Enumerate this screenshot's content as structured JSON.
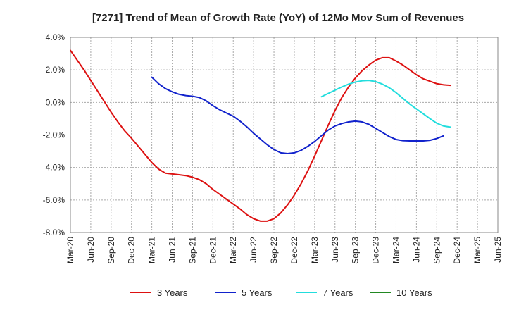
{
  "chart_data": {
    "type": "line",
    "title": "[7271]  Trend of Mean of Growth Rate (YoY) of 12Mo Mov Sum of Revenues",
    "xlabel": "",
    "ylabel": "",
    "ylim": [
      -8,
      4
    ],
    "yticks": [
      4,
      2,
      0,
      -2,
      -4,
      -6,
      -8
    ],
    "ytick_labels": [
      "4.0%",
      "2.0%",
      "0.0%",
      "-2.0%",
      "-4.0%",
      "-6.0%",
      "-8.0%"
    ],
    "x_range_months": [
      0,
      63
    ],
    "xtick_labels": [
      "Mar-20",
      "Jun-20",
      "Sep-20",
      "Dec-20",
      "Mar-21",
      "Jun-21",
      "Sep-21",
      "Dec-21",
      "Mar-22",
      "Jun-22",
      "Sep-22",
      "Dec-22",
      "Mar-23",
      "Jun-23",
      "Sep-23",
      "Dec-23",
      "Mar-24",
      "Jun-24",
      "Sep-24",
      "Dec-24",
      "Mar-25",
      "Jun-25"
    ],
    "grid": true,
    "legend_position": "bottom",
    "series": [
      {
        "name": "3 Years",
        "color": "#dd1111",
        "start_month": 0,
        "values": [
          3.2,
          2.6,
          2.0,
          1.35,
          0.7,
          0.05,
          -0.6,
          -1.2,
          -1.75,
          -2.2,
          -2.7,
          -3.2,
          -3.7,
          -4.1,
          -4.35,
          -4.4,
          -4.45,
          -4.5,
          -4.6,
          -4.75,
          -5.0,
          -5.35,
          -5.65,
          -5.95,
          -6.25,
          -6.55,
          -6.9,
          -7.15,
          -7.3,
          -7.3,
          -7.15,
          -6.8,
          -6.3,
          -5.7,
          -5.0,
          -4.2,
          -3.3,
          -2.35,
          -1.4,
          -0.5,
          0.3,
          0.95,
          1.5,
          1.95,
          2.3,
          2.6,
          2.75,
          2.75,
          2.55,
          2.3,
          2.0,
          1.7,
          1.45,
          1.3,
          1.15,
          1.08,
          1.05
        ]
      },
      {
        "name": "5 Years",
        "color": "#1122cc",
        "start_month": 12,
        "values": [
          1.55,
          1.15,
          0.85,
          0.65,
          0.5,
          0.42,
          0.38,
          0.3,
          0.1,
          -0.2,
          -0.45,
          -0.65,
          -0.85,
          -1.15,
          -1.5,
          -1.9,
          -2.25,
          -2.6,
          -2.9,
          -3.1,
          -3.15,
          -3.1,
          -2.95,
          -2.7,
          -2.4,
          -2.05,
          -1.7,
          -1.45,
          -1.3,
          -1.2,
          -1.15,
          -1.2,
          -1.35,
          -1.6,
          -1.85,
          -2.1,
          -2.28,
          -2.35,
          -2.37,
          -2.37,
          -2.37,
          -2.33,
          -2.22,
          -2.05
        ]
      },
      {
        "name": "7 Years",
        "color": "#22dddd",
        "start_month": 37,
        "values": [
          0.35,
          0.55,
          0.75,
          0.95,
          1.12,
          1.25,
          1.33,
          1.35,
          1.28,
          1.12,
          0.9,
          0.6,
          0.25,
          -0.1,
          -0.4,
          -0.7,
          -1.0,
          -1.28,
          -1.45,
          -1.52
        ]
      },
      {
        "name": "10 Years",
        "color": "#228822",
        "start_month": 0,
        "values": []
      }
    ]
  }
}
